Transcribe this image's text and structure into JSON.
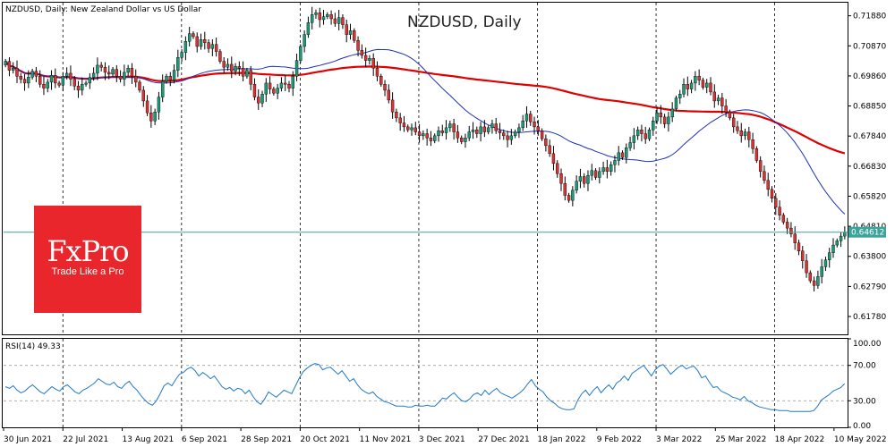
{
  "chart_data": [
    {
      "type": "candlestick",
      "symbol_label": "NZDUSD, Daily:  New Zealand Dollar vs US Dollar",
      "title": "NZDUSD, Daily",
      "ylim": [
        0.6118,
        0.7232
      ],
      "y_ticks": [
        "0.71880",
        "0.70870",
        "0.69860",
        "0.68850",
        "0.67840",
        "0.66830",
        "0.65820",
        "0.64810",
        "0.63800",
        "0.62790",
        "0.61780"
      ],
      "x_labels": [
        "30 Jun 2021",
        "22 Jul 2021",
        "13 Aug 2021",
        "6 Sep 2021",
        "28 Sep 2021",
        "20 Oct 2021",
        "11 Nov 2021",
        "3 Dec 2021",
        "27 Dec 2021",
        "18 Jan 2022",
        "9 Feb 2022",
        "3 Mar 2022",
        "25 Mar 2022",
        "18 Apr 2022",
        "10 May 2022"
      ],
      "current_price": "0.64612",
      "current_value": 0.64612,
      "closes": [
        0.7035,
        0.7005,
        0.7012,
        0.6985,
        0.6975,
        0.6962,
        0.6982,
        0.7002,
        0.6985,
        0.6958,
        0.6945,
        0.6965,
        0.6988,
        0.6962,
        0.6955,
        0.6985,
        0.6995,
        0.6975,
        0.6952,
        0.6938,
        0.6958,
        0.6962,
        0.6981,
        0.6995,
        0.7022,
        0.7015,
        0.6998,
        0.6992,
        0.7008,
        0.6985,
        0.6975,
        0.6998,
        0.7012,
        0.6985,
        0.6965,
        0.6938,
        0.6902,
        0.6862,
        0.6835,
        0.6865,
        0.6915,
        0.6968,
        0.6985,
        0.6972,
        0.7005,
        0.7048,
        0.7065,
        0.7102,
        0.7128,
        0.7118,
        0.7085,
        0.7108,
        0.7098,
        0.7078,
        0.7092,
        0.7068,
        0.7035,
        0.7015,
        0.7025,
        0.7002,
        0.7018,
        0.7012,
        0.6985,
        0.7005,
        0.6958,
        0.6915,
        0.6895,
        0.6925,
        0.6962,
        0.6942,
        0.6928,
        0.6945,
        0.6962,
        0.6958,
        0.6945,
        0.6985,
        0.7038,
        0.7085,
        0.7125,
        0.7165,
        0.7192,
        0.7198,
        0.7175,
        0.7185,
        0.7192,
        0.7178,
        0.7162,
        0.7182,
        0.7158,
        0.7125,
        0.7138,
        0.7105,
        0.7072,
        0.7055,
        0.7038,
        0.7045,
        0.7012,
        0.6985,
        0.6958,
        0.6938,
        0.6905,
        0.6865,
        0.6845,
        0.6828,
        0.6815,
        0.6805,
        0.6812,
        0.6798,
        0.6785,
        0.6792,
        0.6778,
        0.6768,
        0.6785,
        0.6802,
        0.6795,
        0.6812,
        0.6825,
        0.6798,
        0.6778,
        0.6765,
        0.6778,
        0.6798,
        0.6805,
        0.6792,
        0.6815,
        0.6798,
        0.6812,
        0.6825,
        0.6802,
        0.6795,
        0.6785,
        0.6772,
        0.6785,
        0.6798,
        0.6812,
        0.6835,
        0.6858,
        0.6832,
        0.6815,
        0.6802,
        0.6775,
        0.6752,
        0.6725,
        0.6692,
        0.6658,
        0.6625,
        0.6585,
        0.6568,
        0.6602,
        0.6632,
        0.6648,
        0.6625,
        0.6652,
        0.6668,
        0.6645,
        0.6665,
        0.6678,
        0.6665,
        0.6688,
        0.6702,
        0.6728,
        0.6712,
        0.6745,
        0.6762,
        0.6785,
        0.6805,
        0.6792,
        0.6775,
        0.6805,
        0.6835,
        0.6862,
        0.6848,
        0.6825,
        0.6848,
        0.6875,
        0.6912,
        0.6925,
        0.6958,
        0.6942,
        0.6962,
        0.6985,
        0.6972,
        0.6948,
        0.6962,
        0.6932,
        0.6902,
        0.6912,
        0.6885,
        0.6865,
        0.6845,
        0.6815,
        0.6802,
        0.6785,
        0.6798,
        0.6772,
        0.6742,
        0.6702,
        0.6665,
        0.6635,
        0.6605,
        0.6575,
        0.6545,
        0.6518,
        0.6495,
        0.6475,
        0.6455,
        0.6425,
        0.6398,
        0.6365,
        0.6325,
        0.6298,
        0.6282,
        0.6312,
        0.6345,
        0.6368,
        0.6392,
        0.6418,
        0.6432,
        0.6448,
        0.6461
      ],
      "series": [
        {
          "name": "",
          "color": "#e00000"
        },
        {
          "name": "",
          "color": "#1c2fb5"
        }
      ]
    },
    {
      "type": "line",
      "label": "RSI(14) 49.33",
      "ylim": [
        0,
        100
      ],
      "y_ticks": [
        "100.00",
        "70.00",
        "30.00",
        "0.00"
      ],
      "levels": [
        70,
        30
      ],
      "color": "#1e78c8",
      "values": [
        46,
        44,
        47,
        42,
        39,
        41,
        45,
        48,
        44,
        40,
        38,
        42,
        46,
        43,
        41,
        46,
        48,
        44,
        40,
        38,
        42,
        44,
        47,
        50,
        55,
        52,
        49,
        48,
        51,
        46,
        44,
        49,
        52,
        46,
        42,
        36,
        31,
        27,
        25,
        30,
        38,
        47,
        50,
        47,
        54,
        60,
        62,
        66,
        68,
        64,
        58,
        62,
        59,
        55,
        58,
        52,
        46,
        43,
        45,
        41,
        44,
        43,
        38,
        42,
        35,
        29,
        26,
        32,
        40,
        37,
        34,
        38,
        42,
        40,
        38,
        47,
        56,
        63,
        67,
        70,
        72,
        71,
        65,
        67,
        68,
        64,
        60,
        64,
        58,
        52,
        55,
        48,
        43,
        40,
        38,
        40,
        35,
        32,
        29,
        28,
        26,
        24,
        24,
        24,
        23,
        23,
        25,
        24,
        24,
        25,
        24,
        24,
        28,
        33,
        32,
        36,
        39,
        34,
        30,
        29,
        32,
        37,
        39,
        36,
        42,
        37,
        41,
        44,
        39,
        37,
        35,
        33,
        36,
        39,
        43,
        49,
        54,
        47,
        43,
        40,
        34,
        30,
        27,
        23,
        21,
        20,
        20,
        21,
        31,
        38,
        42,
        36,
        42,
        46,
        39,
        44,
        48,
        43,
        50,
        53,
        58,
        53,
        61,
        64,
        67,
        70,
        64,
        58,
        65,
        69,
        71,
        66,
        60,
        64,
        68,
        70,
        66,
        68,
        69,
        64,
        56,
        58,
        51,
        45,
        46,
        41,
        39,
        37,
        34,
        33,
        31,
        35,
        30,
        28,
        25,
        23,
        22,
        21,
        20,
        20,
        19,
        19,
        19,
        18,
        18,
        18,
        18,
        18,
        18,
        19,
        24,
        31,
        34,
        37,
        41,
        43,
        45,
        49.33
      ]
    }
  ],
  "logo": {
    "brand": "FxPro",
    "tagline": "Trade Like a Pro"
  }
}
